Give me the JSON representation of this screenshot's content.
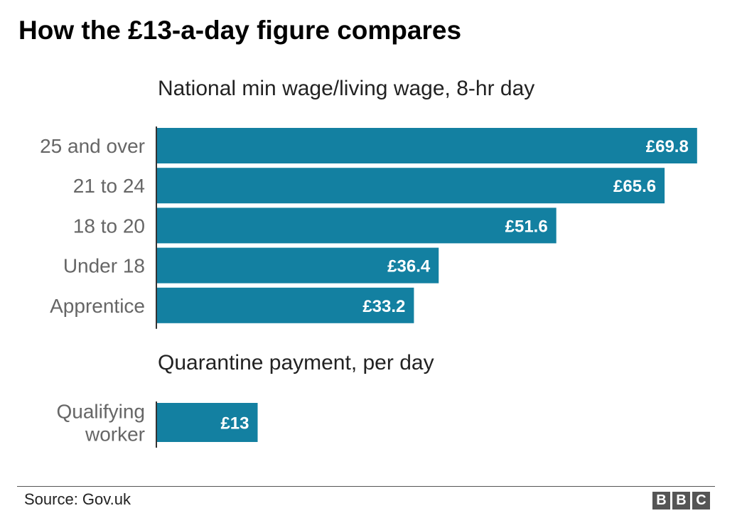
{
  "title": "How the £13-a-day figure compares",
  "brand": {
    "letters": [
      "B",
      "B",
      "C"
    ],
    "color": "#555555"
  },
  "source": "Source: Gov.uk",
  "chart_data": [
    {
      "type": "bar",
      "orientation": "horizontal",
      "title": "National min wage/living wage, 8-hr day",
      "categories": [
        "25 and over",
        "21 to 24",
        "18 to 20",
        "Under 18",
        "Apprentice"
      ],
      "values": [
        69.8,
        65.6,
        51.6,
        36.4,
        33.2
      ],
      "data_labels": [
        "£69.8",
        "£65.6",
        "£51.6",
        "£36.4",
        "£33.2"
      ],
      "unit": "£",
      "xlim": [
        0,
        70
      ],
      "grid": false,
      "color": "#1380A1"
    },
    {
      "type": "bar",
      "orientation": "horizontal",
      "title": "Quarantine payment, per day",
      "categories": [
        [
          "Qualifying",
          "worker"
        ]
      ],
      "values": [
        13
      ],
      "data_labels": [
        "£13"
      ],
      "unit": "£",
      "xlim": [
        0,
        70
      ],
      "grid": false,
      "color": "#1380A1"
    }
  ]
}
